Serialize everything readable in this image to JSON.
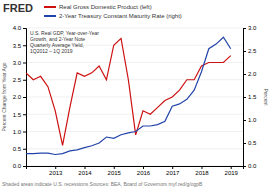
{
  "chart_data": {
    "type": "line",
    "title": "U.S. Real GDP, Year-over-Year\nGrowth, and 2-Year Note\nQuarterly Average Yield,\n1Q2012 – 1Q 2019",
    "ylabel": "Percent Change from Year Ago",
    "y2label": "Percent",
    "annotations": [
      "FRED",
      "Shaded areas indicate U.S. recessions        Sources: BEA, Board of Governors        myf.red/g/ogpB"
    ],
    "x": [
      2012.0,
      2012.25,
      2012.5,
      2012.75,
      2013.0,
      2013.25,
      2013.5,
      2013.75,
      2014.0,
      2014.25,
      2014.5,
      2014.75,
      2015.0,
      2015.25,
      2015.5,
      2015.75,
      2016.0,
      2016.25,
      2016.5,
      2016.75,
      2017.0,
      2017.25,
      2017.5,
      2017.75,
      2018.0,
      2018.25,
      2018.5,
      2018.75,
      2019.0
    ],
    "series": [
      {
        "name": "Real Gross Domestic Product (left)",
        "color": "#cc1111",
        "values": [
          2.7,
          2.5,
          2.6,
          2.3,
          1.6,
          0.6,
          1.7,
          2.7,
          2.6,
          2.7,
          2.9,
          2.5,
          3.5,
          3.7,
          2.5,
          0.9,
          1.6,
          1.5,
          1.7,
          1.9,
          2.0,
          2.2,
          2.5,
          2.5,
          2.9,
          3.0,
          3.0,
          3.0,
          3.2
        ]
      },
      {
        "name": "2-Year Treasury Constant Maturity Rate (right)",
        "color": "#2244aa",
        "axis": "y2",
        "values": [
          0.27,
          0.27,
          0.28,
          0.28,
          0.25,
          0.27,
          0.33,
          0.35,
          0.4,
          0.44,
          0.5,
          0.63,
          0.6,
          0.68,
          0.72,
          0.75,
          0.87,
          0.87,
          0.9,
          0.97,
          1.3,
          1.35,
          1.45,
          1.65,
          2.05,
          2.55,
          2.65,
          2.8,
          2.55
        ]
      }
    ],
    "xlim": [
      2012.0,
      2019.42
    ],
    "xticks": [
      2013,
      2014,
      2015,
      2016,
      2017,
      2018,
      2019
    ],
    "ylim": [
      0.0,
      4.0
    ],
    "yticks": [
      {
        "value": 0.0,
        "label": "0.0"
      },
      0.5,
      {
        "value": 1.0,
        "label": "1.0"
      },
      1.5,
      {
        "value": 2.0,
        "label": "2.0"
      },
      2.5,
      {
        "value": 3.0,
        "label": "3.0"
      },
      3.5,
      {
        "value": 4.0,
        "label": "4.0"
      }
    ],
    "y2lim": [
      0.0,
      3.0
    ],
    "y2ticks": [
      {
        "value": 0.0,
        "label": "0.0"
      },
      0.5,
      {
        "value": 1.0,
        "label": "1.0"
      },
      1.5,
      {
        "value": 2.0,
        "label": "2.0"
      },
      2.5,
      {
        "value": 3.0,
        "label": "3.0"
      }
    ],
    "grid": true,
    "legend": "top"
  }
}
